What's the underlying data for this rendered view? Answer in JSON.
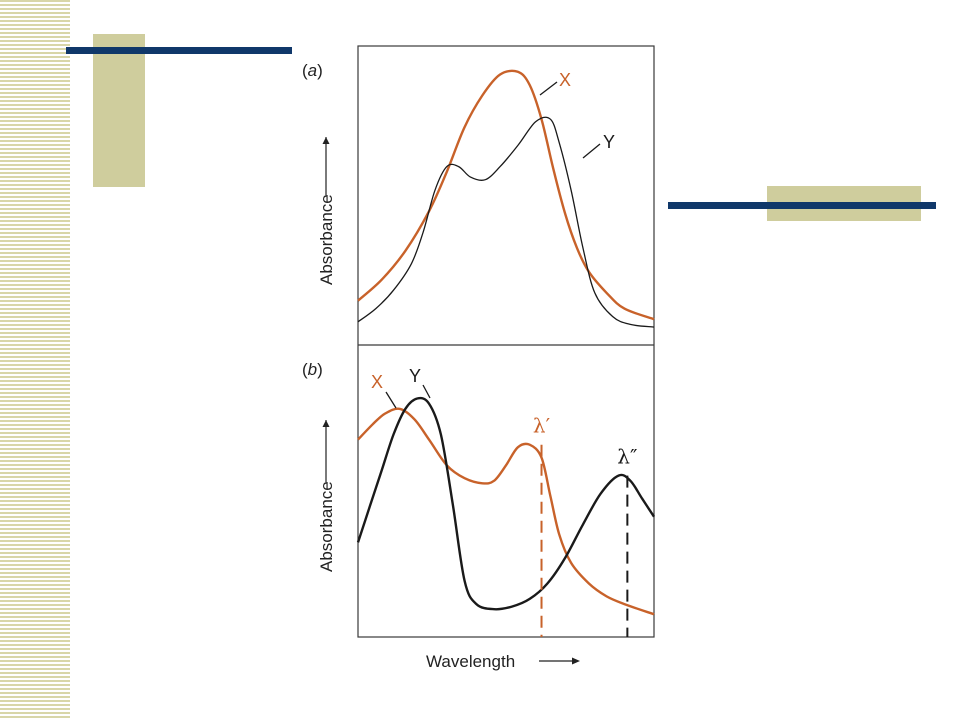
{
  "colors": {
    "x_series": "#c8622a",
    "y_series": "#1a1a1a",
    "frame": "#3a3a3a",
    "navy_bar": "#10386a",
    "olive_block": "#cfcd9d"
  },
  "chart_data": [
    {
      "type": "line",
      "panel_label": "(a)",
      "panel_letter": "a",
      "ylabel": "Absorbance",
      "xlabel": "",
      "grid": false,
      "ticks": "none",
      "series": [
        {
          "name": "X",
          "color": "#c8622a",
          "points": [
            [
              0.0,
              0.1
            ],
            [
              0.08,
              0.18
            ],
            [
              0.16,
              0.29
            ],
            [
              0.24,
              0.44
            ],
            [
              0.3,
              0.59
            ],
            [
              0.36,
              0.76
            ],
            [
              0.42,
              0.88
            ],
            [
              0.48,
              0.96
            ],
            [
              0.54,
              0.97
            ],
            [
              0.58,
              0.92
            ],
            [
              0.62,
              0.79
            ],
            [
              0.66,
              0.6
            ],
            [
              0.7,
              0.43
            ],
            [
              0.74,
              0.3
            ],
            [
              0.78,
              0.21
            ],
            [
              0.84,
              0.13
            ],
            [
              0.9,
              0.07
            ],
            [
              1.0,
              0.03
            ]
          ]
        },
        {
          "name": "Y",
          "color": "#1a1a1a",
          "points": [
            [
              0.0,
              0.02
            ],
            [
              0.06,
              0.07
            ],
            [
              0.12,
              0.14
            ],
            [
              0.18,
              0.24
            ],
            [
              0.22,
              0.36
            ],
            [
              0.26,
              0.52
            ],
            [
              0.3,
              0.61
            ],
            [
              0.34,
              0.61
            ],
            [
              0.38,
              0.57
            ],
            [
              0.43,
              0.56
            ],
            [
              0.48,
              0.61
            ],
            [
              0.54,
              0.69
            ],
            [
              0.6,
              0.78
            ],
            [
              0.65,
              0.79
            ],
            [
              0.68,
              0.7
            ],
            [
              0.72,
              0.52
            ],
            [
              0.76,
              0.3
            ],
            [
              0.8,
              0.13
            ],
            [
              0.86,
              0.04
            ],
            [
              0.92,
              0.01
            ],
            [
              1.0,
              0.0
            ]
          ]
        }
      ]
    },
    {
      "type": "line",
      "panel_label": "(b)",
      "panel_letter": "b",
      "ylabel": "Absorbance",
      "xlabel": "Wavelength",
      "grid": false,
      "ticks": "none",
      "series": [
        {
          "name": "X",
          "color": "#c8622a",
          "points": [
            [
              0.0,
              0.7
            ],
            [
              0.05,
              0.76
            ],
            [
              0.09,
              0.8
            ],
            [
              0.14,
              0.82
            ],
            [
              0.19,
              0.78
            ],
            [
              0.24,
              0.7
            ],
            [
              0.3,
              0.6
            ],
            [
              0.36,
              0.55
            ],
            [
              0.42,
              0.53
            ],
            [
              0.46,
              0.54
            ],
            [
              0.5,
              0.6
            ],
            [
              0.54,
              0.67
            ],
            [
              0.58,
              0.68
            ],
            [
              0.62,
              0.63
            ],
            [
              0.65,
              0.48
            ],
            [
              0.68,
              0.33
            ],
            [
              0.72,
              0.22
            ],
            [
              0.78,
              0.14
            ],
            [
              0.84,
              0.09
            ],
            [
              0.9,
              0.06
            ],
            [
              1.0,
              0.02
            ]
          ]
        },
        {
          "name": "Y",
          "color": "#1a1a1a",
          "points": [
            [
              0.0,
              0.3
            ],
            [
              0.04,
              0.44
            ],
            [
              0.08,
              0.58
            ],
            [
              0.12,
              0.72
            ],
            [
              0.16,
              0.82
            ],
            [
              0.2,
              0.86
            ],
            [
              0.24,
              0.84
            ],
            [
              0.28,
              0.72
            ],
            [
              0.32,
              0.45
            ],
            [
              0.36,
              0.15
            ],
            [
              0.4,
              0.06
            ],
            [
              0.46,
              0.04
            ],
            [
              0.52,
              0.05
            ],
            [
              0.58,
              0.08
            ],
            [
              0.64,
              0.14
            ],
            [
              0.7,
              0.24
            ],
            [
              0.76,
              0.37
            ],
            [
              0.82,
              0.49
            ],
            [
              0.88,
              0.56
            ],
            [
              0.92,
              0.54
            ],
            [
              0.96,
              0.47
            ],
            [
              1.0,
              0.4
            ]
          ]
        }
      ],
      "annotations": [
        {
          "label": "λ′",
          "x": 0.62,
          "y": 0.68,
          "color": "#c8622a"
        },
        {
          "label": "λ″",
          "x": 0.91,
          "y": 0.56,
          "color": "#1a1a1a"
        }
      ]
    }
  ]
}
